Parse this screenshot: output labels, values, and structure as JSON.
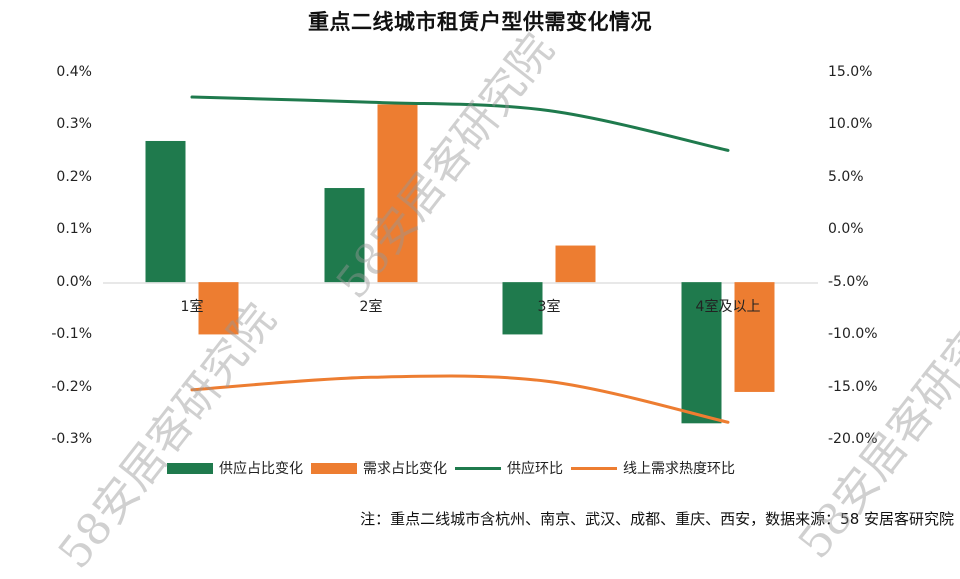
{
  "title": "重点二线城市租赁户型供需变化情况",
  "chart_data": {
    "type": "bar+line",
    "title": "重点二线城市租赁户型供需变化情况",
    "categories": [
      "1室",
      "2室",
      "3室",
      "4室及以上"
    ],
    "series": [
      {
        "name": "供应占比变化",
        "type": "bar",
        "axis": "left",
        "color": "#1f7a4d",
        "values": [
          0.27,
          0.18,
          -0.1,
          -0.27
        ]
      },
      {
        "name": "需求占比变化",
        "type": "bar",
        "axis": "left",
        "color": "#ed7d31",
        "values": [
          -0.1,
          0.34,
          0.07,
          -0.21
        ]
      },
      {
        "name": "供应环比",
        "type": "line",
        "axis": "right",
        "color": "#1f7a4d",
        "values": [
          12.7,
          12.2,
          11.4,
          7.6
        ]
      },
      {
        "name": "线上需求热度环比",
        "type": "line",
        "axis": "right",
        "color": "#ed7d31",
        "values": [
          -15.3,
          -14.1,
          -14.5,
          -18.4
        ]
      }
    ],
    "y_left": {
      "label": "",
      "unit": "%",
      "ylim": [
        -0.3,
        0.4
      ],
      "ticks": [
        "0.4%",
        "0.3%",
        "0.2%",
        "0.1%",
        "0.0%",
        "-0.1%",
        "-0.2%",
        "-0.3%"
      ],
      "tick_values": [
        0.4,
        0.3,
        0.2,
        0.1,
        0.0,
        -0.1,
        -0.2,
        -0.3
      ]
    },
    "y_right": {
      "label": "",
      "unit": "%",
      "ylim": [
        -20,
        15
      ],
      "ticks": [
        "15.0%",
        "10.0%",
        "5.0%",
        "0.0%",
        "-5.0%",
        "-10.0%",
        "-15.0%",
        "-20.0%"
      ],
      "tick_values": [
        15,
        10,
        5,
        0,
        -5,
        -10,
        -15,
        -20
      ]
    },
    "xlabel": "",
    "grid": false,
    "legend_position": "bottom"
  },
  "legend": [
    {
      "label": "供应占比变化",
      "kind": "bar",
      "color": "#1f7a4d"
    },
    {
      "label": "需求占比变化",
      "kind": "bar",
      "color": "#ed7d31"
    },
    {
      "label": "供应环比",
      "kind": "line",
      "color": "#1f7a4d"
    },
    {
      "label": "线上需求热度环比",
      "kind": "line",
      "color": "#ed7d31"
    }
  ],
  "note": "注：重点二线城市含杭州、南京、武汉、成都、重庆、西安，数据来源：58 安居客研究院",
  "watermark": "58安居客研究院"
}
